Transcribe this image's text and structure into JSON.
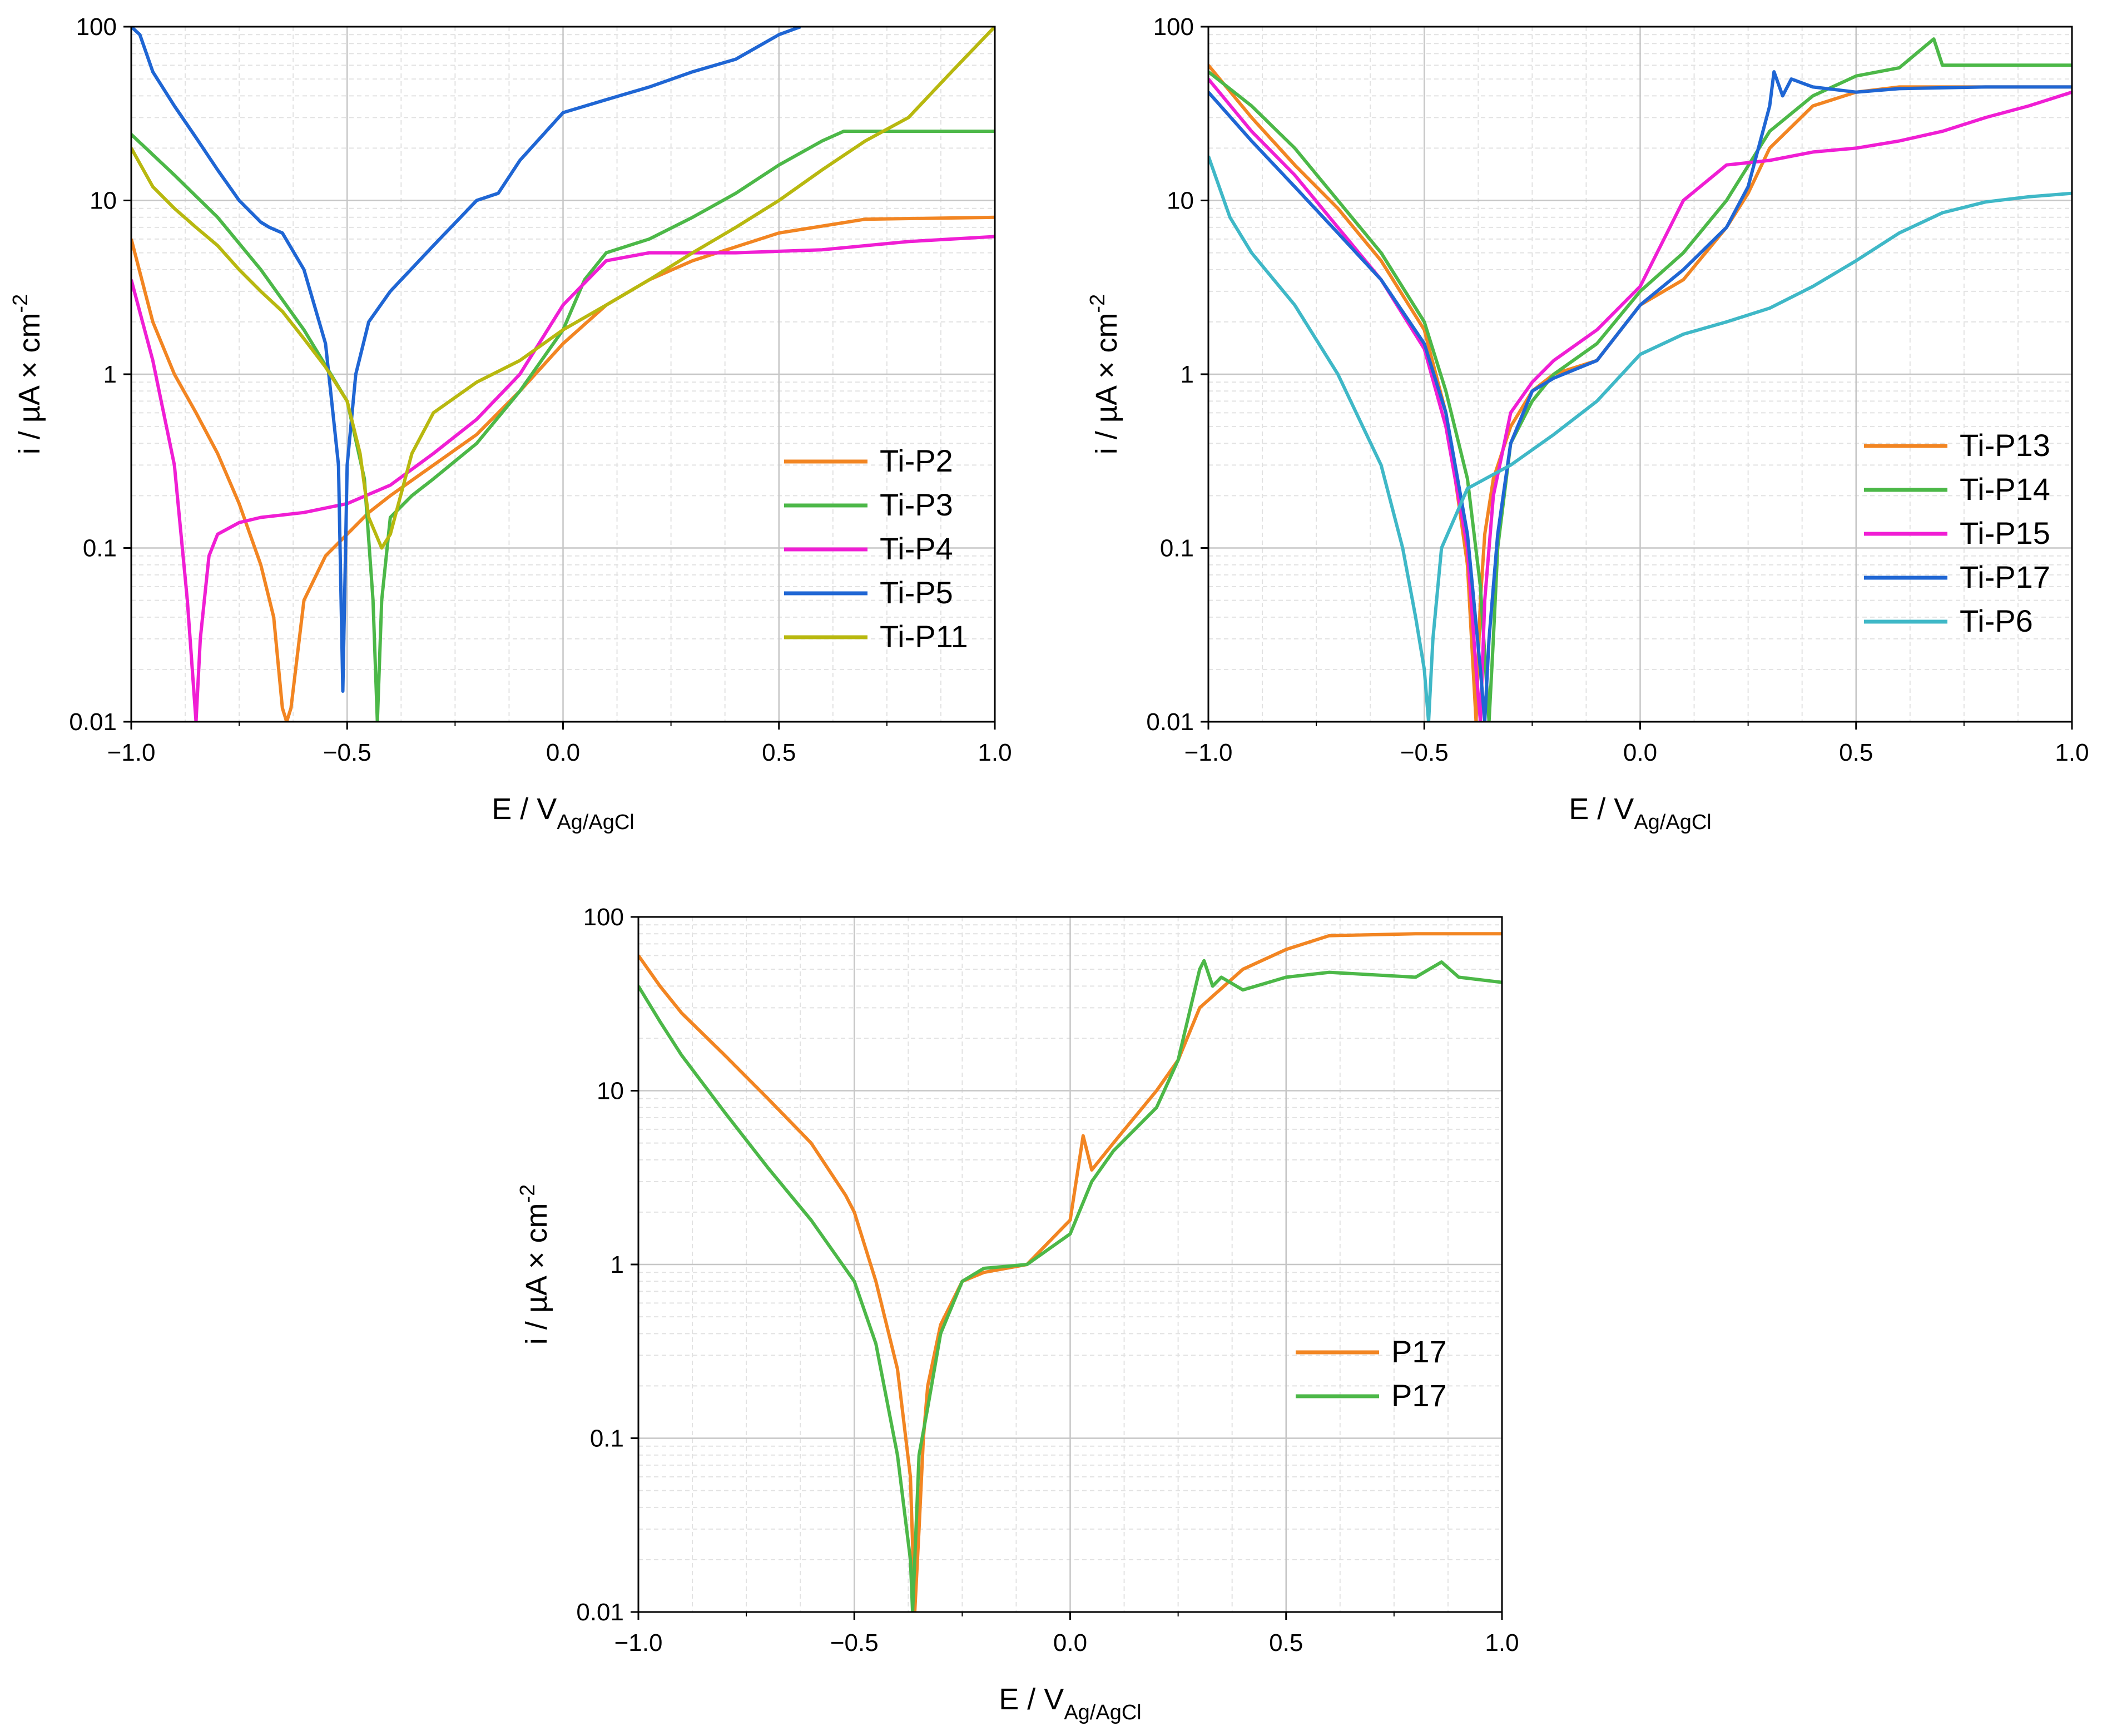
{
  "chart_data": [
    {
      "type": "line",
      "panel": "top-left",
      "xlabel": "E / V",
      "xlabel_sub": "Ag/AgCl",
      "ylabel": "i / µA × cm",
      "ylabel_sup": "-2",
      "xlim": [
        -1.0,
        1.0
      ],
      "ylim": [
        0.01,
        100
      ],
      "yscale": "log",
      "xticks": [
        "−1.0",
        "−0.5",
        "0.0",
        "0.5",
        "1.0"
      ],
      "yticks": [
        "0.01",
        "0.1",
        "1",
        "10",
        "100"
      ],
      "legend_position": "lower-right",
      "series": [
        {
          "name": "Ti-P2",
          "color": "#f28522",
          "x": [
            -1.0,
            -0.95,
            -0.9,
            -0.85,
            -0.8,
            -0.75,
            -0.7,
            -0.67,
            -0.65,
            -0.64,
            -0.63,
            -0.6,
            -0.55,
            -0.5,
            -0.45,
            -0.4,
            -0.3,
            -0.2,
            -0.1,
            0.0,
            0.1,
            0.2,
            0.3,
            0.5,
            0.7,
            1.0
          ],
          "y": [
            6,
            2,
            1,
            0.6,
            0.35,
            0.18,
            0.08,
            0.04,
            0.012,
            0.01,
            0.012,
            0.05,
            0.09,
            0.12,
            0.16,
            0.2,
            0.3,
            0.45,
            0.8,
            1.5,
            2.5,
            3.5,
            4.5,
            6.5,
            7.8,
            8
          ]
        },
        {
          "name": "Ti-P3",
          "color": "#4cb848",
          "x": [
            -1.0,
            -0.9,
            -0.8,
            -0.7,
            -0.6,
            -0.5,
            -0.46,
            -0.44,
            -0.43,
            -0.42,
            -0.4,
            -0.35,
            -0.3,
            -0.2,
            -0.1,
            0.0,
            0.05,
            0.1,
            0.2,
            0.3,
            0.4,
            0.5,
            0.6,
            0.65,
            0.7,
            1.0
          ],
          "y": [
            24,
            14,
            8,
            4,
            1.8,
            0.7,
            0.25,
            0.05,
            0.01,
            0.05,
            0.15,
            0.2,
            0.25,
            0.4,
            0.8,
            1.8,
            3.5,
            5,
            6,
            8,
            11,
            16,
            22,
            25,
            25,
            25
          ]
        },
        {
          "name": "Ti-P4",
          "color": "#f01ed4",
          "x": [
            -1.0,
            -0.95,
            -0.9,
            -0.87,
            -0.85,
            -0.84,
            -0.82,
            -0.8,
            -0.75,
            -0.7,
            -0.6,
            -0.5,
            -0.4,
            -0.3,
            -0.2,
            -0.1,
            0.0,
            0.1,
            0.2,
            0.4,
            0.6,
            0.8,
            1.0
          ],
          "y": [
            3.5,
            1.2,
            0.3,
            0.05,
            0.01,
            0.03,
            0.09,
            0.12,
            0.14,
            0.15,
            0.16,
            0.18,
            0.23,
            0.35,
            0.55,
            1.0,
            2.5,
            4.5,
            5,
            5,
            5.2,
            5.8,
            6.2
          ]
        },
        {
          "name": "Ti-P5",
          "color": "#1f66d4",
          "x": [
            -1.0,
            -0.98,
            -0.95,
            -0.9,
            -0.85,
            -0.8,
            -0.75,
            -0.7,
            -0.68,
            -0.65,
            -0.6,
            -0.55,
            -0.52,
            -0.51,
            -0.5,
            -0.48,
            -0.45,
            -0.4,
            -0.3,
            -0.2,
            -0.15,
            -0.1,
            0.0,
            0.1,
            0.2,
            0.3,
            0.4,
            0.5,
            0.55
          ],
          "y": [
            100,
            90,
            55,
            35,
            23,
            15,
            10,
            7.5,
            7,
            6.5,
            4,
            1.5,
            0.3,
            0.015,
            0.3,
            1.0,
            2.0,
            3.0,
            5.5,
            10,
            11,
            17,
            32,
            38,
            45,
            55,
            65,
            90,
            100
          ]
        },
        {
          "name": "Ti-P11",
          "color": "#b8b80f",
          "x": [
            -1.0,
            -0.95,
            -0.9,
            -0.85,
            -0.8,
            -0.75,
            -0.7,
            -0.65,
            -0.6,
            -0.55,
            -0.5,
            -0.47,
            -0.45,
            -0.42,
            -0.4,
            -0.35,
            -0.3,
            -0.2,
            -0.1,
            0.0,
            0.1,
            0.2,
            0.3,
            0.4,
            0.5,
            0.6,
            0.7,
            0.8,
            0.9,
            1.0
          ],
          "y": [
            20,
            12,
            9,
            7,
            5.5,
            4,
            3,
            2.3,
            1.6,
            1.1,
            0.7,
            0.35,
            0.15,
            0.1,
            0.12,
            0.35,
            0.6,
            0.9,
            1.2,
            1.8,
            2.5,
            3.5,
            5,
            7,
            10,
            15,
            22,
            30,
            55,
            100
          ]
        }
      ]
    },
    {
      "type": "line",
      "panel": "top-right",
      "xlabel": "E / V",
      "xlabel_sub": "Ag/AgCl",
      "ylabel": "i / µA × cm",
      "ylabel_sup": "-2",
      "xlim": [
        -1.0,
        1.0
      ],
      "ylim": [
        0.01,
        100
      ],
      "yscale": "log",
      "xticks": [
        "−1.0",
        "−0.5",
        "0.0",
        "0.5",
        "1.0"
      ],
      "yticks": [
        "0.01",
        "0.1",
        "1",
        "10",
        "100"
      ],
      "legend_position": "center-right",
      "series": [
        {
          "name": "Ti-P13",
          "color": "#f28522",
          "x": [
            -1.0,
            -0.9,
            -0.8,
            -0.7,
            -0.6,
            -0.5,
            -0.45,
            -0.4,
            -0.38,
            -0.37,
            -0.36,
            -0.34,
            -0.3,
            -0.25,
            -0.2,
            -0.1,
            0.0,
            0.1,
            0.2,
            0.25,
            0.3,
            0.4,
            0.5,
            0.6,
            0.8,
            1.0
          ],
          "y": [
            60,
            30,
            16,
            9,
            4.5,
            1.8,
            0.6,
            0.08,
            0.01,
            0.05,
            0.12,
            0.25,
            0.5,
            0.8,
            1.0,
            1.2,
            2.5,
            3.5,
            7,
            11,
            20,
            35,
            42,
            45,
            45,
            45
          ]
        },
        {
          "name": "Ti-P14",
          "color": "#4cb848",
          "x": [
            -1.0,
            -0.9,
            -0.8,
            -0.7,
            -0.6,
            -0.5,
            -0.45,
            -0.4,
            -0.37,
            -0.35,
            -0.34,
            -0.33,
            -0.3,
            -0.25,
            -0.2,
            -0.1,
            0.0,
            0.1,
            0.2,
            0.3,
            0.4,
            0.5,
            0.6,
            0.68,
            0.7,
            0.8,
            1.0
          ],
          "y": [
            55,
            35,
            20,
            10,
            5,
            2,
            0.8,
            0.25,
            0.06,
            0.01,
            0.03,
            0.1,
            0.4,
            0.7,
            1.0,
            1.5,
            3,
            5,
            10,
            25,
            40,
            52,
            58,
            85,
            60,
            60,
            60
          ]
        },
        {
          "name": "Ti-P15",
          "color": "#f01ed4",
          "x": [
            -1.0,
            -0.9,
            -0.8,
            -0.7,
            -0.6,
            -0.5,
            -0.45,
            -0.4,
            -0.38,
            -0.37,
            -0.36,
            -0.34,
            -0.3,
            -0.25,
            -0.2,
            -0.1,
            0.0,
            0.1,
            0.2,
            0.3,
            0.4,
            0.5,
            0.6,
            0.7,
            0.8,
            0.9,
            1.0
          ],
          "y": [
            50,
            25,
            14,
            7,
            3.5,
            1.4,
            0.5,
            0.1,
            0.02,
            0.01,
            0.05,
            0.2,
            0.6,
            0.9,
            1.2,
            1.8,
            3.2,
            10,
            16,
            17,
            19,
            20,
            22,
            25,
            30,
            35,
            42
          ]
        },
        {
          "name": "Ti-P17",
          "color": "#1f66d4",
          "x": [
            -1.0,
            -0.9,
            -0.8,
            -0.7,
            -0.6,
            -0.5,
            -0.45,
            -0.4,
            -0.37,
            -0.36,
            -0.35,
            -0.33,
            -0.3,
            -0.25,
            -0.2,
            -0.1,
            0.0,
            0.1,
            0.2,
            0.25,
            0.3,
            0.31,
            0.33,
            0.35,
            0.4,
            0.5,
            0.6,
            0.8,
            0.9,
            1.0
          ],
          "y": [
            42,
            22,
            12,
            6.5,
            3.5,
            1.5,
            0.6,
            0.12,
            0.02,
            0.01,
            0.03,
            0.12,
            0.4,
            0.8,
            0.95,
            1.2,
            2.5,
            4,
            7,
            12,
            35,
            55,
            40,
            50,
            45,
            42,
            44,
            45,
            45,
            45
          ]
        },
        {
          "name": "Ti-P6",
          "color": "#3fb8c7",
          "x": [
            -1.0,
            -0.95,
            -0.9,
            -0.8,
            -0.7,
            -0.6,
            -0.55,
            -0.52,
            -0.5,
            -0.49,
            -0.48,
            -0.46,
            -0.4,
            -0.3,
            -0.2,
            -0.1,
            0.0,
            0.1,
            0.2,
            0.3,
            0.4,
            0.5,
            0.6,
            0.7,
            0.8,
            0.9,
            1.0
          ],
          "y": [
            18,
            8,
            5,
            2.5,
            1.0,
            0.3,
            0.1,
            0.04,
            0.02,
            0.01,
            0.03,
            0.1,
            0.22,
            0.3,
            0.45,
            0.7,
            1.3,
            1.7,
            2.0,
            2.4,
            3.2,
            4.5,
            6.5,
            8.5,
            9.8,
            10.5,
            11
          ]
        }
      ]
    },
    {
      "type": "line",
      "panel": "bottom",
      "xlabel": "E / V",
      "xlabel_sub": "Ag/AgCl",
      "ylabel": "i / µA × cm",
      "ylabel_sup": "-2",
      "xlim": [
        -1.0,
        1.0
      ],
      "ylim": [
        0.01,
        100
      ],
      "yscale": "log",
      "xticks": [
        "−1.0",
        "−0.5",
        "0.0",
        "0.5",
        "1.0"
      ],
      "yticks": [
        "0.01",
        "0.1",
        "1",
        "10",
        "100"
      ],
      "legend_position": "lower-right",
      "series": [
        {
          "name": "P17",
          "color": "#f28522",
          "x": [
            -1.0,
            -0.95,
            -0.9,
            -0.8,
            -0.75,
            -0.7,
            -0.6,
            -0.52,
            -0.5,
            -0.45,
            -0.4,
            -0.37,
            -0.36,
            -0.35,
            -0.34,
            -0.33,
            -0.3,
            -0.25,
            -0.2,
            -0.1,
            0.0,
            0.03,
            0.05,
            0.1,
            0.2,
            0.25,
            0.3,
            0.4,
            0.5,
            0.6,
            0.8,
            1.0
          ],
          "y": [
            60,
            40,
            28,
            16,
            12,
            9,
            5,
            2.5,
            2.0,
            0.8,
            0.25,
            0.06,
            0.01,
            0.03,
            0.1,
            0.2,
            0.45,
            0.8,
            0.9,
            1.0,
            1.8,
            5.5,
            3.5,
            5,
            10,
            15,
            30,
            50,
            65,
            78,
            80,
            80
          ]
        },
        {
          "name": "P17",
          "color": "#4cb848",
          "x": [
            -1.0,
            -0.95,
            -0.9,
            -0.8,
            -0.7,
            -0.6,
            -0.5,
            -0.45,
            -0.4,
            -0.37,
            -0.365,
            -0.36,
            -0.35,
            -0.33,
            -0.3,
            -0.25,
            -0.2,
            -0.1,
            0.0,
            0.05,
            0.1,
            0.2,
            0.25,
            0.3,
            0.31,
            0.33,
            0.35,
            0.4,
            0.5,
            0.6,
            0.8,
            0.86,
            0.9,
            1.0
          ],
          "y": [
            40,
            25,
            16,
            7.5,
            3.6,
            1.8,
            0.8,
            0.35,
            0.08,
            0.02,
            0.01,
            0.02,
            0.08,
            0.15,
            0.4,
            0.8,
            0.95,
            1.0,
            1.5,
            3.0,
            4.5,
            8,
            15,
            50,
            56,
            40,
            45,
            38,
            45,
            48,
            45,
            55,
            45,
            42
          ]
        }
      ]
    }
  ]
}
